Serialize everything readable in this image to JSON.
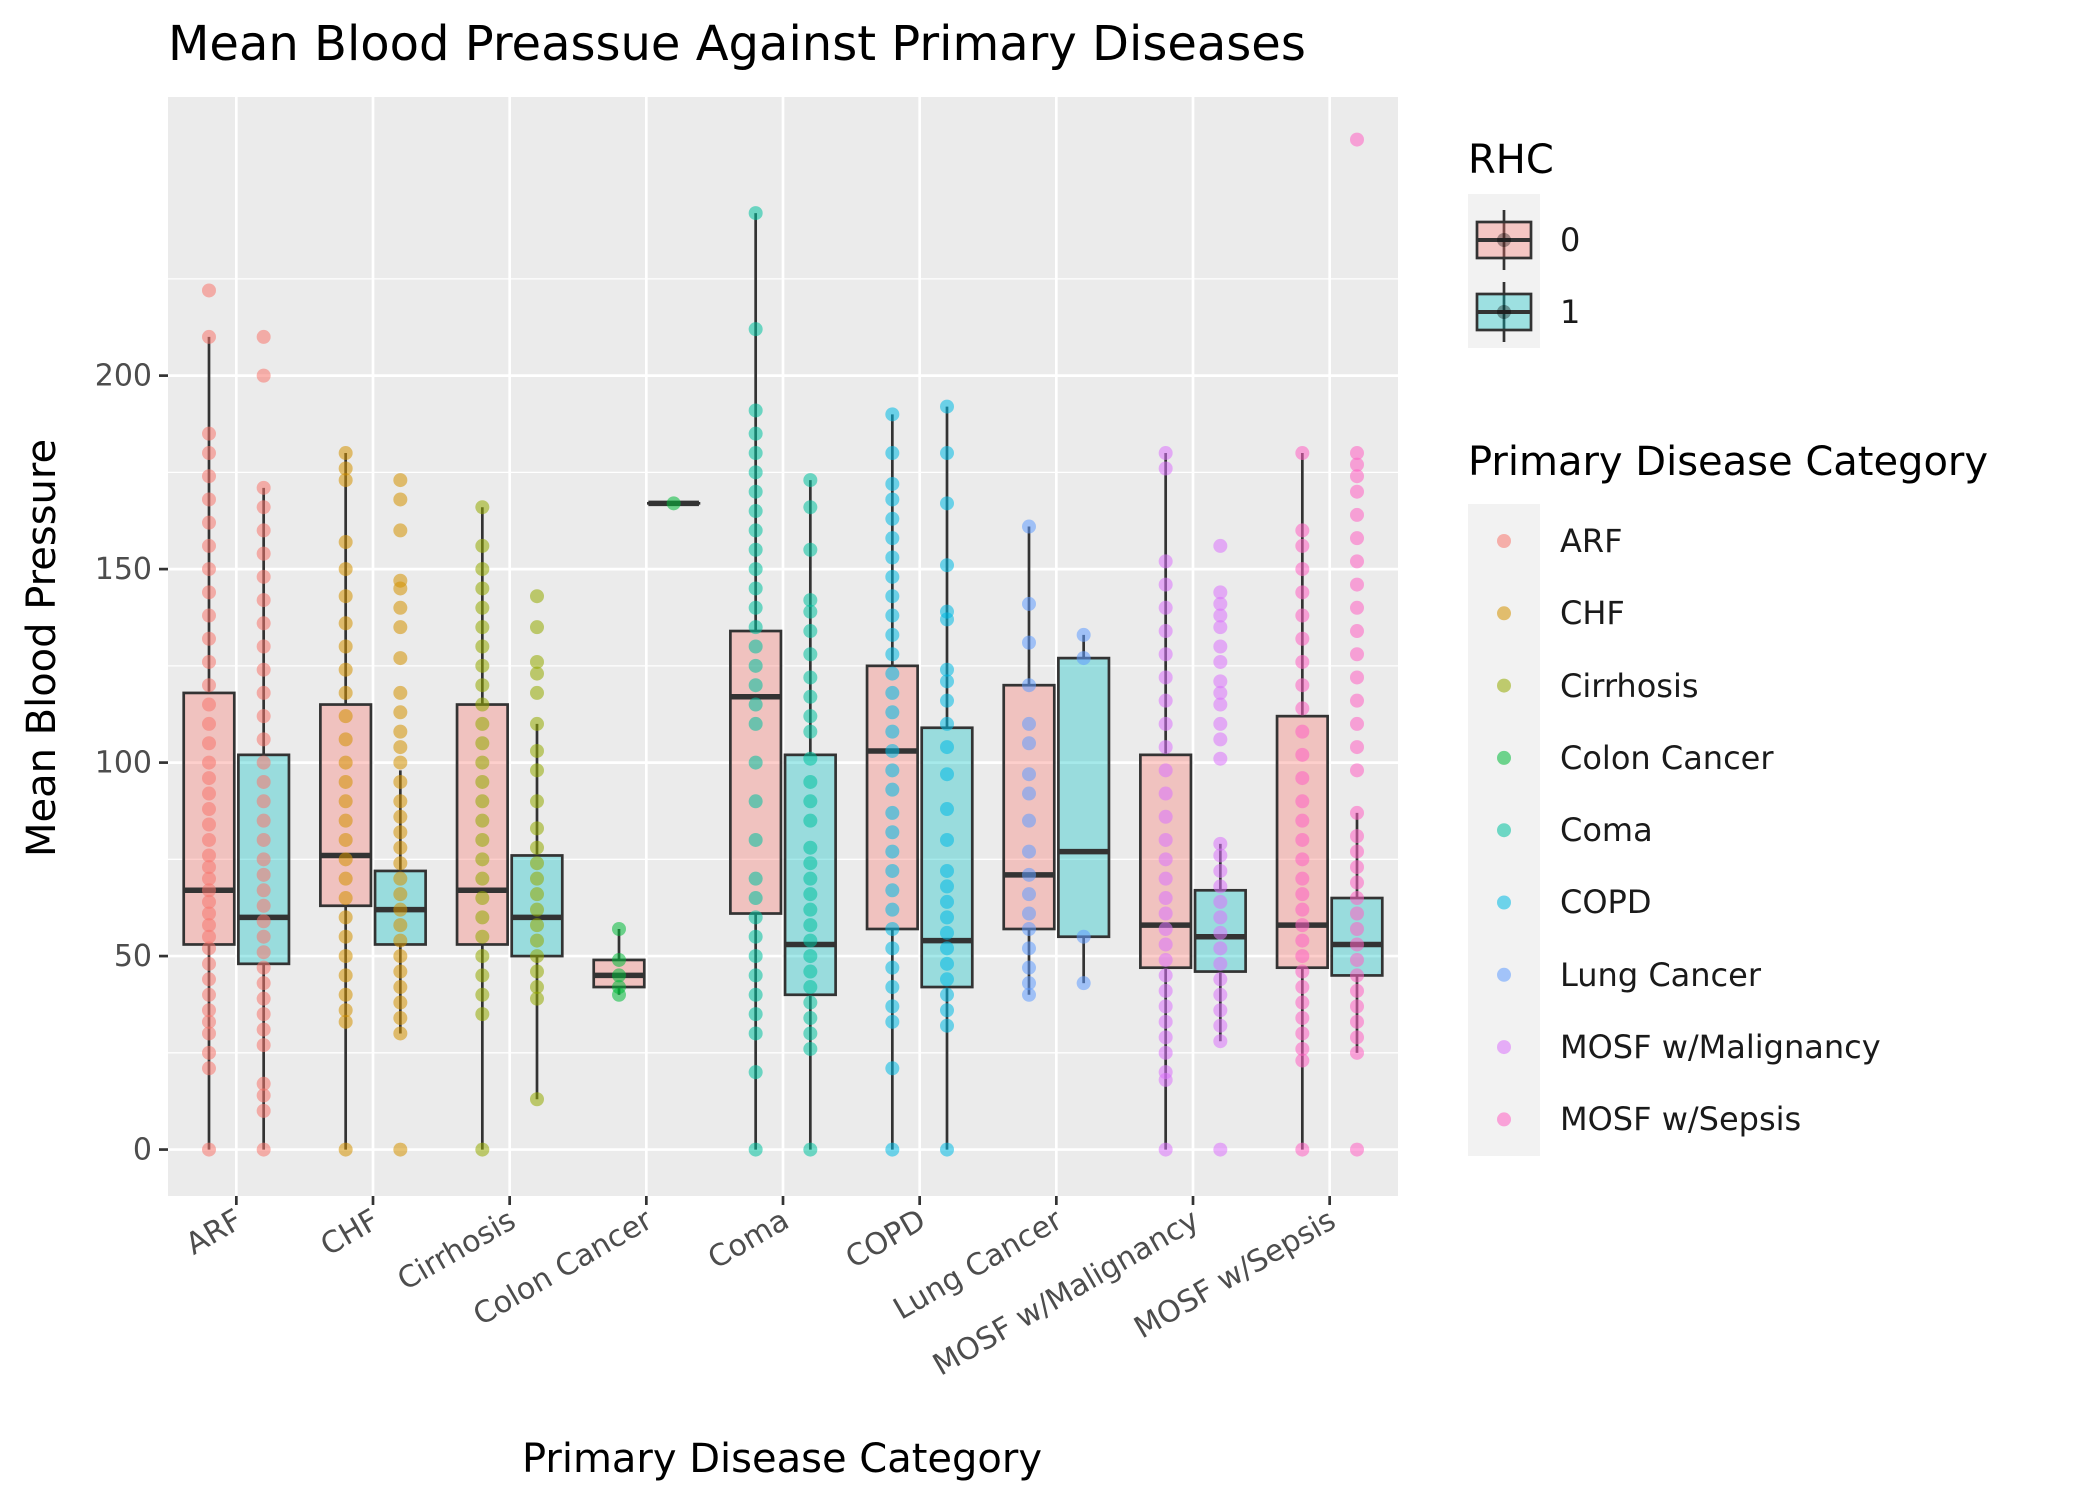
{
  "chart_data": {
    "type": "boxplot",
    "title": "Mean Blood Preassue Against Primary Diseases",
    "xlabel": "Primary Disease Category",
    "ylabel": "Mean Blood Pressure",
    "ylim": [
      -12,
      272
    ],
    "yticks": [
      0,
      50,
      100,
      150,
      200
    ],
    "grid": true,
    "legend_position": "right",
    "categories": [
      "ARF",
      "CHF",
      "Cirrhosis",
      "Colon Cancer",
      "Coma",
      "COPD",
      "Lung Cancer",
      "MOSF w/Malignancy",
      "MOSF w/Sepsis"
    ],
    "category_colors": {
      "ARF": "#F8766D",
      "CHF": "#D39200",
      "Cirrhosis": "#93AA00",
      "Colon Cancer": "#00BA38",
      "Coma": "#00C19F",
      "COPD": "#00B9E3",
      "Lung Cancer": "#619CFF",
      "MOSF w/Malignancy": "#DB72FB",
      "MOSF w/Sepsis": "#FF61C3"
    },
    "rhc_colors": {
      "0": "#F8766D",
      "1": "#00BFC4"
    },
    "series": [
      {
        "name": "0",
        "boxes": [
          {
            "category": "ARF",
            "whisker_low": 0,
            "q1": 53,
            "median": 67,
            "q3": 118,
            "whisker_high": 210
          },
          {
            "category": "CHF",
            "whisker_low": 0,
            "q1": 63,
            "median": 76,
            "q3": 115,
            "whisker_high": 180
          },
          {
            "category": "Cirrhosis",
            "whisker_low": 0,
            "q1": 53,
            "median": 67,
            "q3": 115,
            "whisker_high": 166
          },
          {
            "category": "Colon Cancer",
            "whisker_low": 40,
            "q1": 42,
            "median": 45,
            "q3": 49,
            "whisker_high": 57
          },
          {
            "category": "Coma",
            "whisker_low": 0,
            "q1": 61,
            "median": 117,
            "q3": 134,
            "whisker_high": 242
          },
          {
            "category": "COPD",
            "whisker_low": 0,
            "q1": 57,
            "median": 103,
            "q3": 125,
            "whisker_high": 190
          },
          {
            "category": "Lung Cancer",
            "whisker_low": 40,
            "q1": 57,
            "median": 71,
            "q3": 120,
            "whisker_high": 161
          },
          {
            "category": "MOSF w/Malignancy",
            "whisker_low": 0,
            "q1": 47,
            "median": 58,
            "q3": 102,
            "whisker_high": 180
          },
          {
            "category": "MOSF w/Sepsis",
            "whisker_low": 0,
            "q1": 47,
            "median": 58,
            "q3": 112,
            "whisker_high": 180
          }
        ],
        "points": [
          {
            "category": "ARF",
            "values": [
              0,
              21,
              25,
              30,
              33,
              36,
              40,
              44,
              48,
              52,
              55,
              58,
              61,
              64,
              67,
              70,
              73,
              76,
              80,
              84,
              88,
              92,
              96,
              100,
              105,
              110,
              115,
              120,
              126,
              132,
              138,
              144,
              150,
              156,
              162,
              168,
              174,
              180,
              185,
              210,
              222
            ]
          },
          {
            "category": "CHF",
            "values": [
              0,
              33,
              36,
              40,
              45,
              50,
              55,
              60,
              65,
              70,
              75,
              80,
              85,
              90,
              95,
              100,
              106,
              112,
              118,
              124,
              130,
              136,
              143,
              150,
              157,
              173,
              176,
              180
            ]
          },
          {
            "category": "Cirrhosis",
            "values": [
              0,
              35,
              40,
              45,
              50,
              55,
              60,
              65,
              70,
              75,
              80,
              85,
              90,
              95,
              100,
              105,
              110,
              115,
              120,
              125,
              130,
              135,
              140,
              145,
              150,
              156,
              166
            ]
          },
          {
            "category": "Colon Cancer",
            "values": [
              40,
              42,
              45,
              49,
              57
            ]
          },
          {
            "category": "Coma",
            "values": [
              0,
              20,
              30,
              35,
              40,
              45,
              50,
              55,
              60,
              65,
              70,
              80,
              90,
              100,
              110,
              115,
              120,
              125,
              130,
              135,
              140,
              145,
              150,
              155,
              160,
              165,
              170,
              175,
              180,
              185,
              191,
              212,
              242
            ]
          },
          {
            "category": "COPD",
            "values": [
              0,
              21,
              33,
              37,
              42,
              47,
              52,
              57,
              62,
              67,
              72,
              77,
              82,
              87,
              93,
              98,
              103,
              108,
              113,
              118,
              123,
              128,
              133,
              138,
              143,
              148,
              153,
              158,
              163,
              168,
              172,
              180,
              190
            ]
          },
          {
            "category": "Lung Cancer",
            "values": [
              40,
              43,
              47,
              52,
              57,
              61,
              66,
              71,
              77,
              85,
              92,
              97,
              105,
              110,
              120,
              131,
              141,
              161
            ]
          },
          {
            "category": "MOSF w/Malignancy",
            "values": [
              0,
              18,
              20,
              25,
              29,
              33,
              37,
              41,
              45,
              49,
              53,
              57,
              61,
              65,
              70,
              75,
              80,
              86,
              92,
              98,
              104,
              110,
              116,
              122,
              128,
              134,
              140,
              146,
              152,
              176,
              180
            ]
          },
          {
            "category": "MOSF w/Sepsis",
            "values": [
              0,
              23,
              26,
              30,
              34,
              38,
              42,
              46,
              50,
              54,
              58,
              62,
              66,
              70,
              75,
              80,
              85,
              90,
              96,
              102,
              108,
              114,
              120,
              126,
              132,
              138,
              144,
              150,
              156,
              160,
              180
            ]
          }
        ]
      },
      {
        "name": "1",
        "boxes": [
          {
            "category": "ARF",
            "whisker_low": 0,
            "q1": 48,
            "median": 60,
            "q3": 102,
            "whisker_high": 171
          },
          {
            "category": "CHF",
            "whisker_low": 30,
            "q1": 53,
            "median": 62,
            "q3": 72,
            "whisker_high": 98
          },
          {
            "category": "Cirrhosis",
            "whisker_low": 13,
            "q1": 50,
            "median": 60,
            "q3": 76,
            "whisker_high": 110
          },
          {
            "category": "Colon Cancer",
            "whisker_low": 167,
            "q1": 167,
            "median": 167,
            "q3": 167,
            "whisker_high": 167
          },
          {
            "category": "Coma",
            "whisker_low": 0,
            "q1": 40,
            "median": 53,
            "q3": 102,
            "whisker_high": 173
          },
          {
            "category": "COPD",
            "whisker_low": 0,
            "q1": 42,
            "median": 54,
            "q3": 109,
            "whisker_high": 192
          },
          {
            "category": "Lung Cancer",
            "whisker_low": 43,
            "q1": 55,
            "median": 77,
            "q3": 127,
            "whisker_high": 133
          },
          {
            "category": "MOSF w/Malignancy",
            "whisker_low": 28,
            "q1": 46,
            "median": 55,
            "q3": 67,
            "whisker_high": 79
          },
          {
            "category": "MOSF w/Sepsis",
            "whisker_low": 25,
            "q1": 45,
            "median": 53,
            "q3": 65,
            "whisker_high": 87
          }
        ],
        "points": [
          {
            "category": "ARF",
            "values": [
              0,
              10,
              14,
              17,
              27,
              31,
              35,
              39,
              43,
              47,
              51,
              55,
              59,
              63,
              67,
              71,
              75,
              80,
              85,
              90,
              95,
              100,
              106,
              112,
              118,
              124,
              130,
              136,
              142,
              148,
              154,
              160,
              166,
              171,
              200,
              210
            ]
          },
          {
            "category": "CHF",
            "values": [
              0,
              30,
              34,
              38,
              42,
              46,
              50,
              54,
              58,
              62,
              66,
              70,
              74,
              78,
              82,
              86,
              90,
              95,
              100,
              104,
              108,
              113,
              118,
              127,
              135,
              140,
              145,
              147,
              160,
              168,
              173
            ]
          },
          {
            "category": "Cirrhosis",
            "values": [
              13,
              39,
              42,
              46,
              50,
              54,
              58,
              62,
              66,
              70,
              74,
              78,
              83,
              90,
              98,
              103,
              110,
              118,
              123,
              126,
              135,
              143
            ]
          },
          {
            "category": "Colon Cancer",
            "values": [
              167
            ]
          },
          {
            "category": "Coma",
            "values": [
              0,
              26,
              30,
              34,
              38,
              42,
              46,
              50,
              54,
              58,
              62,
              66,
              70,
              74,
              78,
              85,
              90,
              95,
              101,
              108,
              112,
              117,
              122,
              128,
              134,
              139,
              142,
              155,
              166,
              173
            ]
          },
          {
            "category": "COPD",
            "values": [
              0,
              32,
              36,
              40,
              44,
              48,
              52,
              56,
              60,
              64,
              68,
              72,
              80,
              88,
              97,
              104,
              110,
              116,
              121,
              124,
              137,
              139,
              151,
              167,
              180,
              192
            ]
          },
          {
            "category": "Lung Cancer",
            "values": [
              43,
              55,
              127,
              133
            ]
          },
          {
            "category": "MOSF w/Malignancy",
            "values": [
              0,
              28,
              32,
              36,
              40,
              44,
              48,
              52,
              56,
              60,
              64,
              68,
              72,
              76,
              79,
              101,
              106,
              110,
              115,
              118,
              121,
              126,
              130,
              135,
              138,
              141,
              144,
              156
            ]
          },
          {
            "category": "MOSF w/Sepsis",
            "values": [
              0,
              25,
              29,
              33,
              37,
              41,
              45,
              49,
              53,
              57,
              61,
              65,
              69,
              73,
              77,
              81,
              87,
              98,
              104,
              110,
              116,
              122,
              128,
              134,
              140,
              146,
              152,
              158,
              164,
              170,
              174,
              177,
              180,
              261
            ]
          }
        ]
      }
    ]
  },
  "legend": {
    "rhc": {
      "title": "RHC",
      "items": [
        {
          "label": "0"
        },
        {
          "label": "1"
        }
      ]
    },
    "disease": {
      "title": "Primary Disease Category",
      "items": [
        {
          "label": "ARF"
        },
        {
          "label": "CHF"
        },
        {
          "label": "Cirrhosis"
        },
        {
          "label": "Colon Cancer"
        },
        {
          "label": "Coma"
        },
        {
          "label": "COPD"
        },
        {
          "label": "Lung Cancer"
        },
        {
          "label": "MOSF w/Malignancy"
        },
        {
          "label": "MOSF w/Sepsis"
        }
      ]
    }
  }
}
